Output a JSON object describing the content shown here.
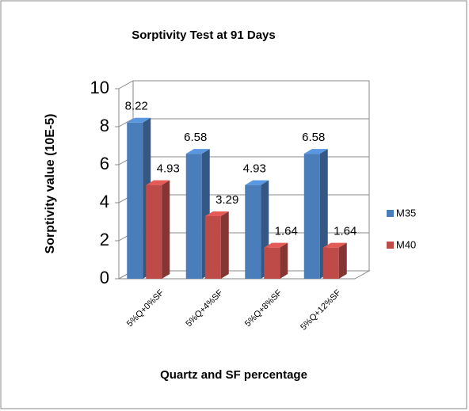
{
  "chart_data": {
    "type": "bar3d",
    "title": "Sorptivity Test at 91 Days",
    "x_label": "Quartz and SF percentage",
    "y_label": "Sorptivity value (10E-5)",
    "categories": [
      "5%Q+0%SF",
      "5%Q+4%SF",
      "5%Q+8%SF",
      "5%Q+12%SF"
    ],
    "series": [
      {
        "name": "M35",
        "color": "#4a7ebb",
        "values": [
          8.22,
          6.58,
          4.93,
          6.58
        ]
      },
      {
        "name": "M40",
        "color": "#be4b48",
        "values": [
          4.93,
          3.29,
          1.64,
          1.64
        ]
      }
    ],
    "ylim": [
      0,
      10
    ],
    "yticks": [
      0,
      2,
      4,
      6,
      8,
      10
    ],
    "grid": true,
    "legend": "right"
  }
}
